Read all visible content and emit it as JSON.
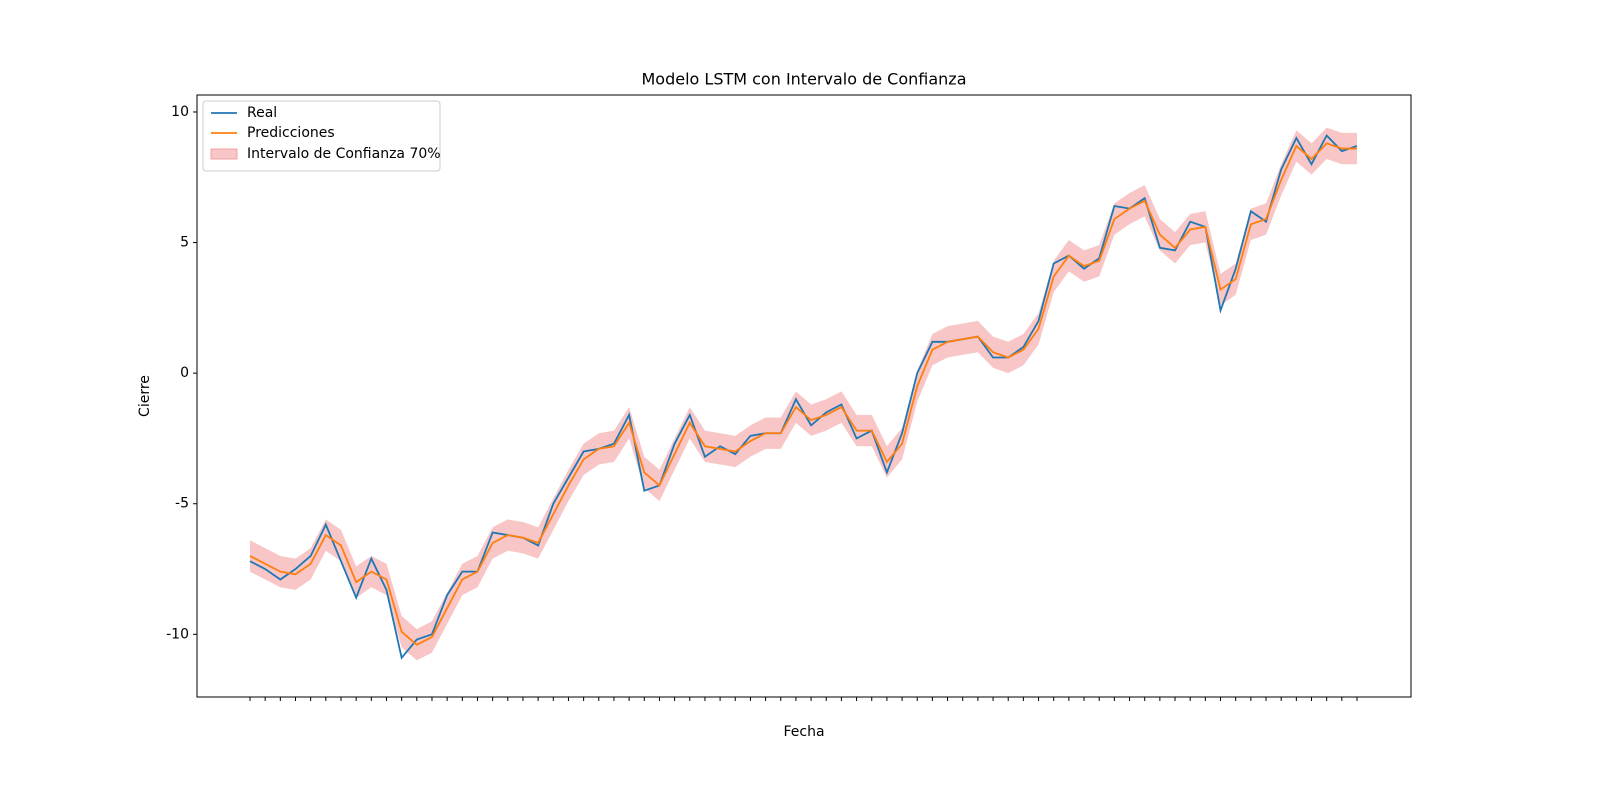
{
  "chart_data": {
    "type": "line",
    "title": "Modelo LSTM con Intervalo de Confianza",
    "x_label": "Fecha",
    "y_label": "Cierre",
    "categories": [
      null,
      null,
      null,
      null,
      null,
      null,
      null,
      null,
      null,
      null,
      null,
      null,
      null,
      null,
      null,
      null,
      null,
      null,
      null,
      null,
      null,
      null,
      null,
      null,
      null,
      null,
      null,
      null,
      null,
      null,
      null,
      null,
      null,
      null,
      null,
      null,
      null,
      null,
      null,
      null,
      null,
      null,
      null,
      null,
      null,
      null,
      null,
      null,
      null,
      null,
      null,
      null,
      null,
      null,
      null,
      null,
      null,
      null,
      null,
      null,
      null,
      null,
      null,
      null,
      null,
      null,
      null,
      null,
      null,
      null,
      null,
      null,
      null,
      null
    ],
    "series": [
      {
        "name": "Real",
        "color": "#1f77b4",
        "values": [
          -7.2,
          -7.5,
          -7.9,
          -7.5,
          -7.0,
          -5.8,
          -7.2,
          -8.6,
          -7.1,
          -8.3,
          -10.9,
          -10.2,
          -10.0,
          -8.5,
          -7.6,
          -7.6,
          -6.1,
          -6.2,
          -6.3,
          -6.6,
          -5.0,
          -4.0,
          -3.0,
          -2.9,
          -2.7,
          -1.6,
          -4.5,
          -4.3,
          -2.7,
          -1.6,
          -3.2,
          -2.8,
          -3.1,
          -2.4,
          -2.3,
          -2.3,
          -1.0,
          -2.0,
          -1.5,
          -1.2,
          -2.5,
          -2.2,
          -3.8,
          -2.3,
          0.0,
          1.2,
          1.2,
          1.3,
          1.4,
          0.6,
          0.6,
          1.0,
          2.0,
          4.2,
          4.5,
          4.0,
          4.4,
          6.4,
          6.3,
          6.7,
          4.8,
          4.7,
          5.8,
          5.6,
          2.4,
          4.0,
          6.2,
          5.8,
          7.8,
          9.0,
          8.0,
          9.1,
          8.5,
          8.7
        ]
      },
      {
        "name": "Predicciones",
        "color": "#ff7f0e",
        "values": [
          -7.0,
          -7.3,
          -7.6,
          -7.7,
          -7.3,
          -6.2,
          -6.6,
          -8.0,
          -7.6,
          -7.9,
          -9.9,
          -10.4,
          -10.1,
          -9.0,
          -7.9,
          -7.6,
          -6.5,
          -6.2,
          -6.3,
          -6.5,
          -5.4,
          -4.3,
          -3.3,
          -2.9,
          -2.8,
          -1.9,
          -3.8,
          -4.3,
          -3.1,
          -1.9,
          -2.8,
          -2.9,
          -3.0,
          -2.6,
          -2.3,
          -2.3,
          -1.3,
          -1.8,
          -1.6,
          -1.3,
          -2.2,
          -2.2,
          -3.4,
          -2.7,
          -0.5,
          0.9,
          1.2,
          1.3,
          1.4,
          0.8,
          0.6,
          0.9,
          1.7,
          3.7,
          4.5,
          4.1,
          4.3,
          5.9,
          6.3,
          6.6,
          5.3,
          4.8,
          5.5,
          5.6,
          3.2,
          3.6,
          5.7,
          5.9,
          7.4,
          8.7,
          8.2,
          8.8,
          8.6,
          8.6
        ]
      }
    ],
    "interval": {
      "name": "Intervalo de Confianza 70%",
      "color": "#f4a0a0",
      "lower": [
        -7.6,
        -7.9,
        -8.2,
        -8.3,
        -7.9,
        -6.8,
        -7.2,
        -8.6,
        -8.2,
        -8.5,
        -10.5,
        -11.0,
        -10.7,
        -9.6,
        -8.5,
        -8.2,
        -7.1,
        -6.8,
        -6.9,
        -7.1,
        -6.0,
        -4.9,
        -3.9,
        -3.5,
        -3.4,
        -2.5,
        -4.4,
        -4.9,
        -3.7,
        -2.5,
        -3.4,
        -3.5,
        -3.6,
        -3.2,
        -2.9,
        -2.9,
        -1.9,
        -2.4,
        -2.2,
        -1.9,
        -2.8,
        -2.8,
        -4.0,
        -3.3,
        -1.1,
        0.3,
        0.6,
        0.7,
        0.8,
        0.2,
        0.0,
        0.3,
        1.1,
        3.1,
        3.9,
        3.5,
        3.7,
        5.3,
        5.7,
        6.0,
        4.7,
        4.2,
        4.9,
        5.0,
        2.6,
        3.0,
        5.1,
        5.3,
        6.8,
        8.1,
        7.6,
        8.2,
        8.0,
        8.0
      ],
      "upper": [
        -6.4,
        -6.7,
        -7.0,
        -7.1,
        -6.7,
        -5.6,
        -6.0,
        -7.4,
        -7.0,
        -7.3,
        -9.3,
        -9.8,
        -9.5,
        -8.4,
        -7.3,
        -7.0,
        -5.9,
        -5.6,
        -5.7,
        -5.9,
        -4.8,
        -3.7,
        -2.7,
        -2.3,
        -2.2,
        -1.3,
        -3.2,
        -3.7,
        -2.5,
        -1.3,
        -2.2,
        -2.3,
        -2.4,
        -2.0,
        -1.7,
        -1.7,
        -0.7,
        -1.2,
        -1.0,
        -0.7,
        -1.6,
        -1.6,
        -2.8,
        -2.1,
        0.1,
        1.5,
        1.8,
        1.9,
        2.0,
        1.4,
        1.2,
        1.5,
        2.3,
        4.3,
        5.1,
        4.7,
        4.9,
        6.5,
        6.9,
        7.2,
        5.9,
        5.4,
        6.1,
        6.2,
        3.8,
        4.2,
        6.3,
        6.5,
        8.0,
        9.3,
        8.8,
        9.4,
        9.2,
        9.2
      ]
    },
    "ylim": [
      -12.4,
      10.65
    ],
    "yticks": [
      -10,
      -5,
      0,
      5,
      10
    ],
    "legend": "upper left"
  }
}
